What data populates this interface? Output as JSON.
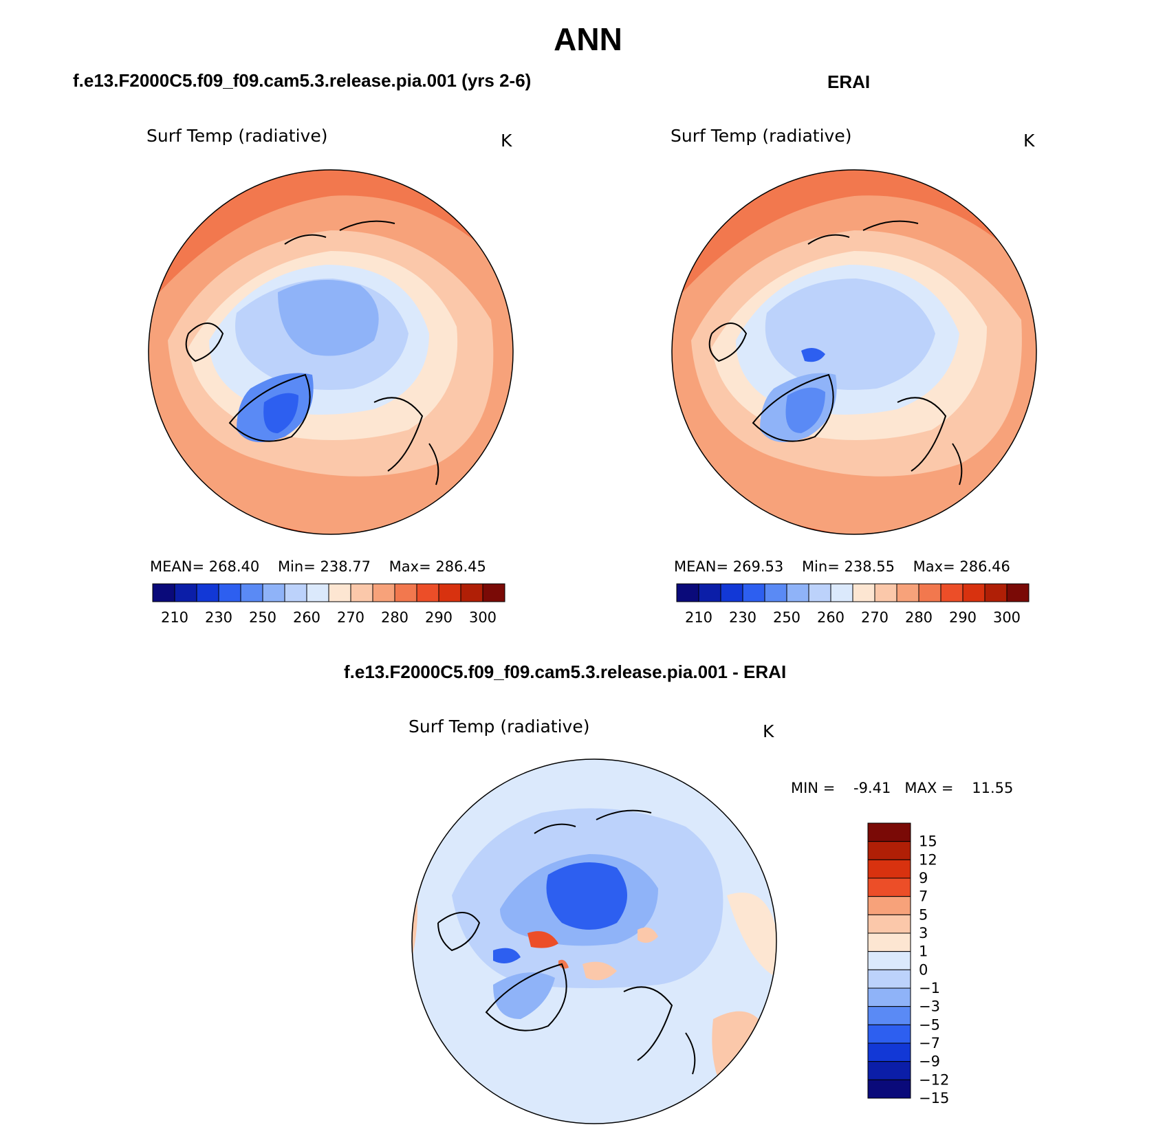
{
  "title": "ANN",
  "panels": [
    {
      "id": "model",
      "title": "f.e13.F2000C5.f09_f09.cam5.3.release.pia.001 (yrs 2-6)",
      "variable": "Surf Temp (radiative)",
      "units": "K",
      "stats": {
        "mean_label": "MEAN=",
        "mean": "268.40",
        "min_label": "Min=",
        "min": "238.77",
        "max_label": "Max=",
        "max": "286.45"
      }
    },
    {
      "id": "obs",
      "title": "ERAI",
      "variable": "Surf Temp (radiative)",
      "units": "K",
      "stats": {
        "mean_label": "MEAN=",
        "mean": "269.53",
        "min_label": "Min=",
        "min": "238.55",
        "max_label": "Max=",
        "max": "286.46"
      }
    },
    {
      "id": "diff",
      "title": "f.e13.F2000C5.f09_f09.cam5.3.release.pia.001 - ERAI",
      "variable": "Surf Temp (radiative)",
      "units": "K",
      "stats": {
        "min_label": "MIN =",
        "min": "-9.41",
        "max_label": "MAX =",
        "max": "11.55"
      }
    }
  ],
  "colorbars": {
    "absolute": {
      "colors": [
        "#0a0a7a",
        "#0b1ea8",
        "#1238d6",
        "#2d5ff0",
        "#5a8af5",
        "#8fb3f8",
        "#bcd2fb",
        "#dbe9fc",
        "#fde6d2",
        "#fbc8aa",
        "#f7a27a",
        "#f2784e",
        "#ec4e28",
        "#d8320f",
        "#b01f06",
        "#7a0a06"
      ],
      "tick_labels": [
        "210",
        "230",
        "250",
        "260",
        "270",
        "280",
        "290",
        "300"
      ]
    },
    "difference": {
      "colors": [
        "#7a0a06",
        "#b01f06",
        "#d8320f",
        "#ec4e28",
        "#f7a27a",
        "#fbc8aa",
        "#fde6d2",
        "#dbe9fc",
        "#bcd2fb",
        "#8fb3f8",
        "#5a8af5",
        "#2d5ff0",
        "#1238d6",
        "#0b1ea8",
        "#0a0a7a"
      ],
      "tick_labels": [
        "15",
        "12",
        "9",
        "7",
        "5",
        "3",
        "1",
        "0",
        "−1",
        "−3",
        "−5",
        "−7",
        "−9",
        "−12",
        "−15"
      ]
    }
  }
}
